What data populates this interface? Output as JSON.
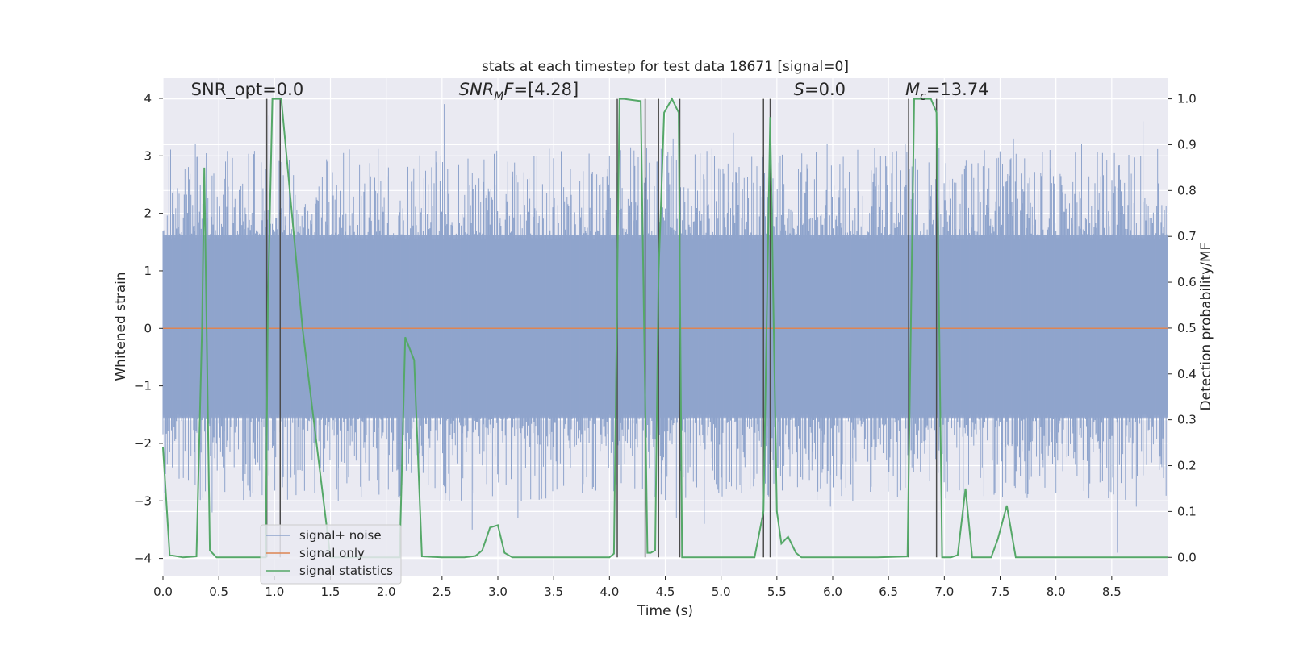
{
  "chart_data": {
    "type": "line",
    "title": "stats at each timestep for test data 18671 [signal=0]",
    "xlabel": "Time (s)",
    "ylabel_left": "Whitened strain",
    "ylabel_right": "Detection probability/MF",
    "xlim": [
      0.0,
      9.0
    ],
    "ylim_left": [
      -4.3,
      4.35
    ],
    "ylim_right": [
      -0.04,
      1.045
    ],
    "grid": true,
    "x_ticks": [
      0.0,
      0.5,
      1.0,
      1.5,
      2.0,
      2.5,
      3.0,
      3.5,
      4.0,
      4.5,
      5.0,
      5.5,
      6.0,
      6.5,
      7.0,
      7.5,
      8.0,
      8.5
    ],
    "x_tick_labels": [
      "0.0",
      "0.5",
      "1.0",
      "1.5",
      "2.0",
      "2.5",
      "3.0",
      "3.5",
      "4.0",
      "4.5",
      "5.0",
      "5.5",
      "6.0",
      "6.5",
      "7.0",
      "7.5",
      "8.0",
      "8.5"
    ],
    "y_left_ticks": [
      -4,
      -3,
      -2,
      -1,
      0,
      1,
      2,
      3,
      4
    ],
    "y_left_tick_labels": [
      "−4",
      "−3",
      "−2",
      "−1",
      "0",
      "1",
      "2",
      "3",
      "4"
    ],
    "y_right_ticks": [
      0.0,
      0.1,
      0.2,
      0.3,
      0.4,
      0.5,
      0.6,
      0.7,
      0.8,
      0.9,
      1.0
    ],
    "y_right_tick_labels": [
      "0.0",
      "0.1",
      "0.2",
      "0.3",
      "0.4",
      "0.5",
      "0.6",
      "0.7",
      "0.8",
      "0.9",
      "1.0"
    ],
    "annotations": [
      {
        "id": "snr-opt",
        "type": "plain",
        "text": "SNR_opt=0.0",
        "x": 0.2,
        "y": 4.1
      },
      {
        "id": "snr-mf",
        "type": "sub",
        "base": "SNR",
        "sub": "M",
        "rest": "F=[4.28]",
        "x": 2.6,
        "y": 4.1
      },
      {
        "id": "s-stat",
        "type": "italic-prefix",
        "base": "S",
        "rest": "=0.0",
        "x": 5.6,
        "y": 4.1
      },
      {
        "id": "mc",
        "type": "sub",
        "base": "M",
        "sub": "c",
        "rest": "=13.74",
        "x": 6.6,
        "y": 4.1
      }
    ],
    "legend": {
      "position": "lower-left",
      "entries": [
        {
          "label": "signal+ noise",
          "color": "#8fa4cc"
        },
        {
          "label": "signal only",
          "color": "#dd8452"
        },
        {
          "label": "signal statistics",
          "color": "#55a868"
        }
      ]
    },
    "series": [
      {
        "name": "signal+ noise",
        "axis": "left",
        "color": "#8fa4cc",
        "kind": "noise",
        "band": [
          -1.55,
          1.62
        ],
        "spike_peaks": [
          [
            0.29,
            3.2
          ],
          [
            0.56,
            2.9
          ],
          [
            0.95,
            3.7
          ],
          [
            1.47,
            2.9
          ],
          [
            2.02,
            2.8
          ],
          [
            2.52,
            3.9
          ],
          [
            3.35,
            3.0
          ],
          [
            4.1,
            3.1
          ],
          [
            4.57,
            3.3
          ],
          [
            5.11,
            3.4
          ],
          [
            5.53,
            3.0
          ],
          [
            5.95,
            3.2
          ],
          [
            6.65,
            3.2
          ],
          [
            7.36,
            3.1
          ],
          [
            7.62,
            3.3
          ],
          [
            8.23,
            3.2
          ],
          [
            8.78,
            3.6
          ],
          [
            0.44,
            -3.2
          ],
          [
            1.57,
            -3.0
          ],
          [
            2.77,
            -3.5
          ],
          [
            3.18,
            -3.3
          ],
          [
            4.6,
            -3.3
          ],
          [
            4.85,
            -3.4
          ],
          [
            5.42,
            -2.9
          ],
          [
            5.98,
            -3.1
          ],
          [
            6.18,
            -3.0
          ],
          [
            7.17,
            -3.3
          ],
          [
            8.55,
            -3.9
          ],
          [
            8.72,
            -3.1
          ]
        ]
      },
      {
        "name": "signal only",
        "axis": "left",
        "color": "#dd8452",
        "x": [
          0.0,
          9.0
        ],
        "y": [
          0.0,
          0.0
        ]
      },
      {
        "name": "signal statistics",
        "axis": "right",
        "color": "#55a868",
        "x": [
          0.0,
          0.06,
          0.18,
          0.3,
          0.35,
          0.37,
          0.42,
          0.48,
          0.92,
          0.94,
          0.98,
          1.06,
          1.25,
          1.5,
          2.0,
          2.12,
          2.17,
          2.25,
          2.32,
          2.5,
          2.7,
          2.8,
          2.86,
          2.93,
          3.0,
          3.06,
          3.13,
          3.5,
          4.0,
          4.04,
          4.09,
          4.13,
          4.28,
          4.34,
          4.37,
          4.41,
          4.44,
          4.49,
          4.56,
          4.62,
          4.65,
          4.8,
          5.0,
          5.3,
          5.38,
          5.44,
          5.5,
          5.54,
          5.6,
          5.67,
          5.72,
          5.8,
          6.0,
          6.4,
          6.67,
          6.73,
          6.78,
          6.88,
          6.93,
          6.98,
          7.0,
          7.06,
          7.12,
          7.19,
          7.25,
          7.35,
          7.42,
          7.48,
          7.56,
          7.64,
          7.7,
          8.0,
          8.5,
          9.0
        ],
        "y": [
          0.24,
          0.005,
          0.0,
          0.002,
          0.5,
          0.85,
          0.015,
          0.0,
          0.0,
          0.55,
          1.0,
          1.0,
          0.5,
          0.0,
          0.0,
          0.0,
          0.48,
          0.43,
          0.002,
          0.0,
          0.0,
          0.003,
          0.015,
          0.065,
          0.07,
          0.01,
          0.0,
          0.0,
          0.0,
          0.008,
          1.0,
          1.0,
          0.995,
          0.01,
          0.01,
          0.015,
          0.62,
          0.97,
          1.0,
          0.97,
          0.0,
          0.0,
          0.0,
          0.0,
          0.1,
          0.96,
          0.1,
          0.03,
          0.045,
          0.01,
          0.0,
          0.0,
          0.0,
          0.0,
          0.002,
          1.0,
          1.0,
          1.0,
          0.97,
          0.0,
          0.0,
          0.0,
          0.005,
          0.15,
          0.0,
          0.0,
          0.0,
          0.04,
          0.113,
          0.0,
          0.0,
          0.0,
          0.0,
          0.0
        ]
      }
    ],
    "vertical_lines": [
      0.93,
      1.05,
      4.07,
      4.32,
      4.44,
      4.63,
      5.38,
      5.44,
      6.68,
      6.93
    ]
  }
}
